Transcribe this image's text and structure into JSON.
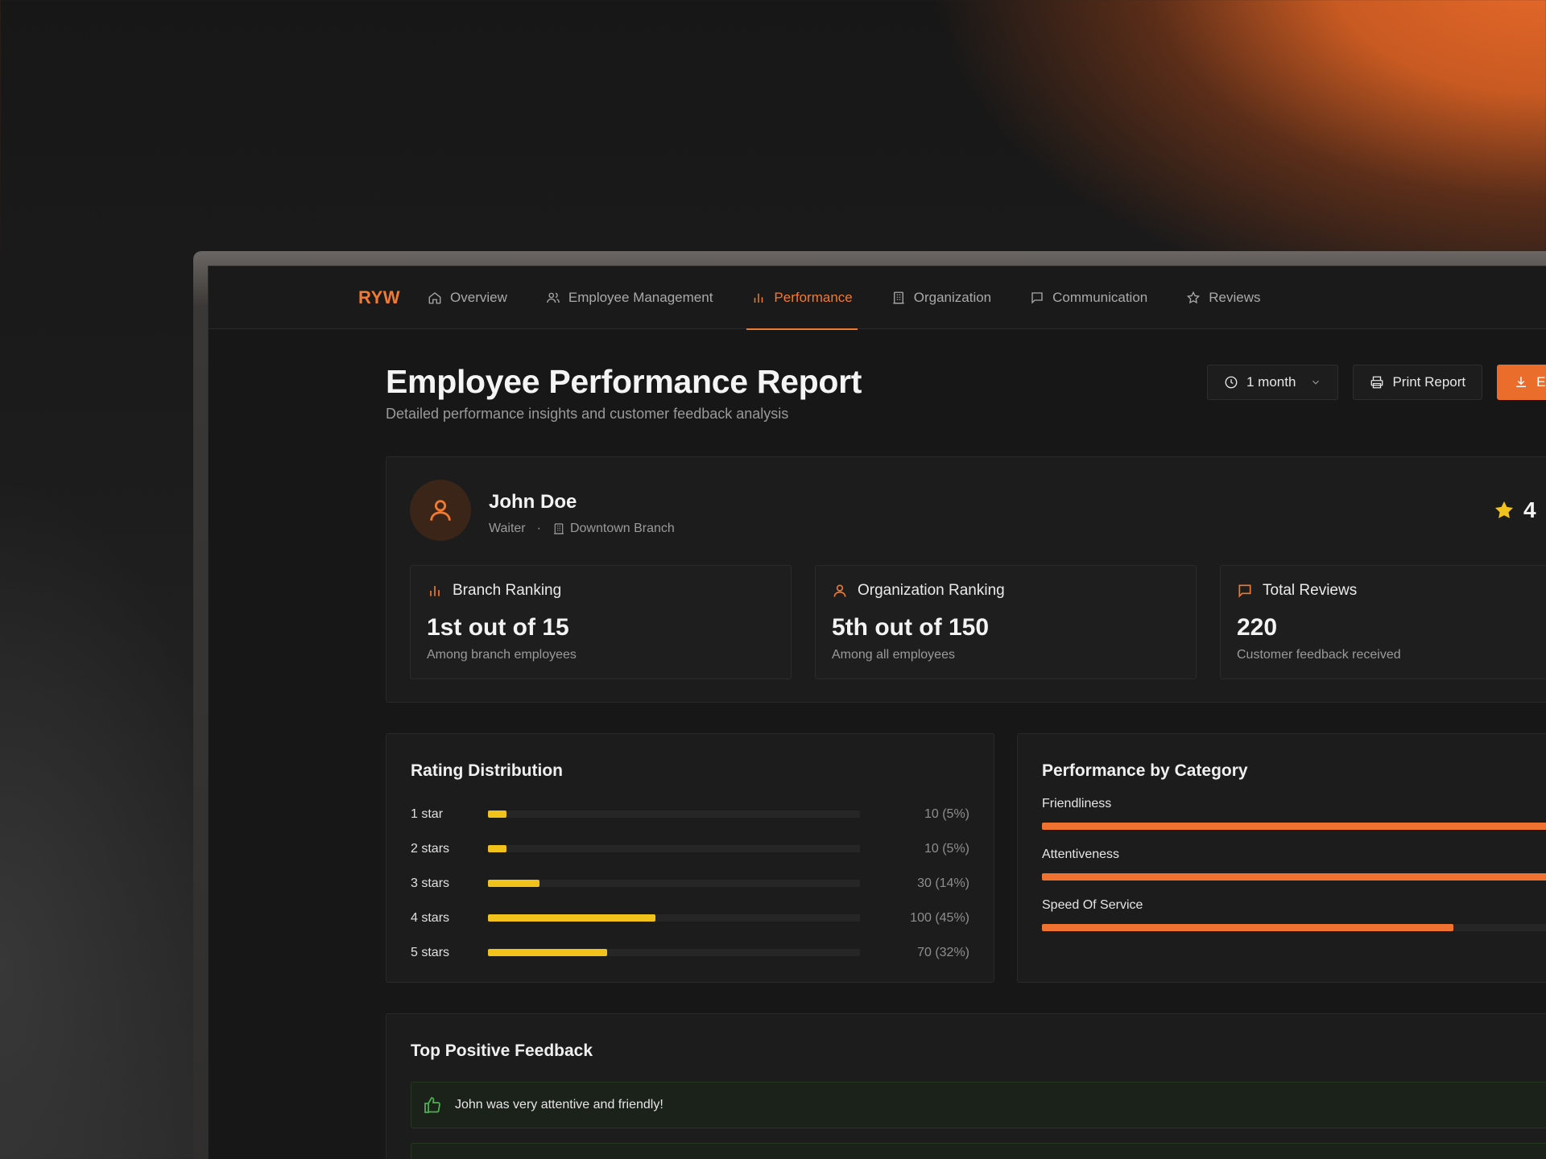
{
  "nav": {
    "logo": "RYW",
    "items": [
      {
        "label": "Overview",
        "icon": "home-icon",
        "active": false
      },
      {
        "label": "Employee Management",
        "icon": "users-icon",
        "active": false
      },
      {
        "label": "Performance",
        "icon": "bar-chart-icon",
        "active": true
      },
      {
        "label": "Organization",
        "icon": "building-icon",
        "active": false
      },
      {
        "label": "Communication",
        "icon": "message-icon",
        "active": false
      },
      {
        "label": "Reviews",
        "icon": "star-icon",
        "active": false
      }
    ]
  },
  "header": {
    "title": "Employee Performance Report",
    "subtitle": "Detailed performance insights and customer feedback analysis",
    "period_select": "1 month",
    "print_label": "Print Report",
    "export_label": "Ex"
  },
  "profile": {
    "name": "John Doe",
    "role": "Waiter",
    "separator": "·",
    "branch": "Downtown Branch",
    "rating_visible": "4"
  },
  "stats": [
    {
      "title": "Branch Ranking",
      "value": "1st out of 15",
      "sub": "Among branch employees",
      "icon": "bar-chart-icon"
    },
    {
      "title": "Organization Ranking",
      "value": "5th out of 150",
      "sub": "Among all employees",
      "icon": "user-icon"
    },
    {
      "title": "Total Reviews",
      "value": "220",
      "sub": "Customer feedback received",
      "icon": "message-icon"
    }
  ],
  "rating_distribution": {
    "title": "Rating Distribution",
    "rows": [
      {
        "label": "1 star",
        "count": "10 (5%)",
        "fraction": 0.05
      },
      {
        "label": "2 stars",
        "count": "10 (5%)",
        "fraction": 0.05
      },
      {
        "label": "3 stars",
        "count": "30 (14%)",
        "fraction": 0.14
      },
      {
        "label": "4 stars",
        "count": "100 (45%)",
        "fraction": 0.45
      },
      {
        "label": "5 stars",
        "count": "70 (32%)",
        "fraction": 0.32
      }
    ]
  },
  "category_performance": {
    "title": "Performance by Category",
    "rows": [
      {
        "label": "Friendliness",
        "fraction": 1.0
      },
      {
        "label": "Attentiveness",
        "fraction": 1.0
      },
      {
        "label": "Speed Of Service",
        "fraction": 0.73
      }
    ]
  },
  "feedback": {
    "title": "Top Positive Feedback",
    "items": [
      "John was very attentive and friendly!"
    ]
  },
  "colors": {
    "accent": "#f07a32",
    "star": "#f2c21c",
    "positive": "#4caf50"
  }
}
